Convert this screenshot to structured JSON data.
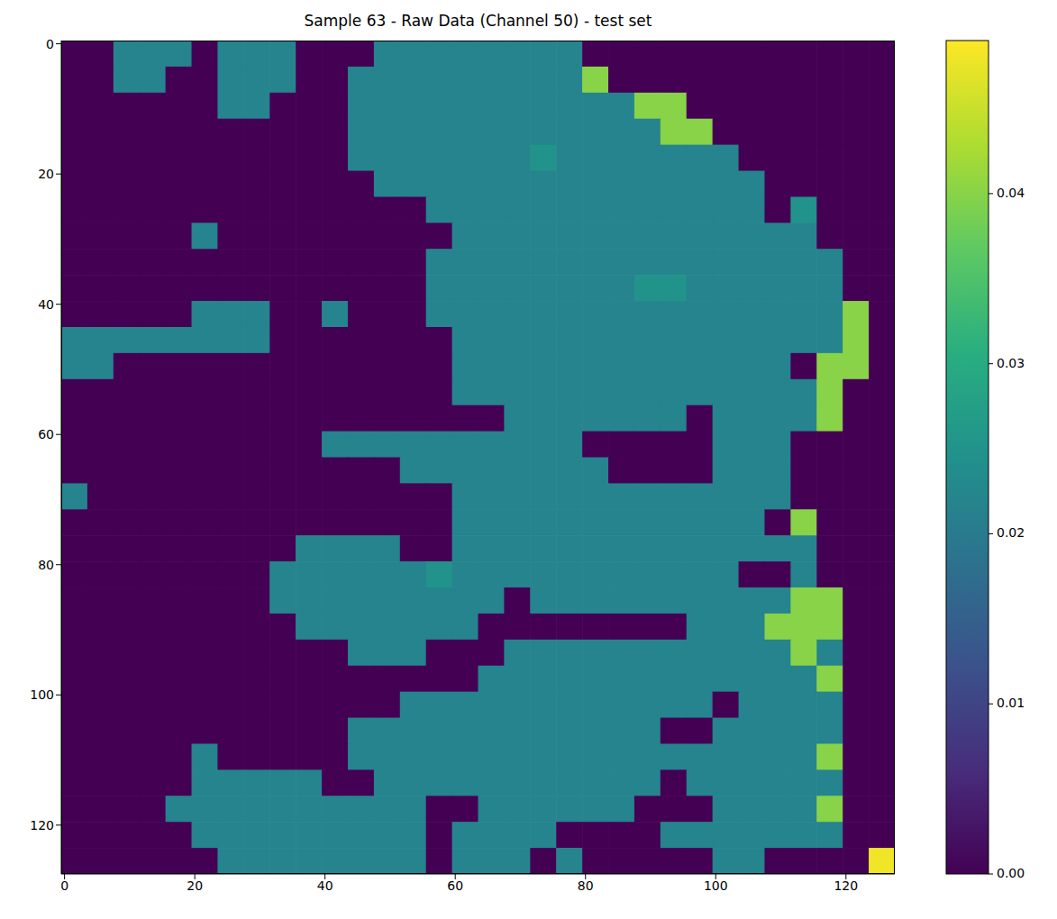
{
  "chart_data": {
    "type": "heatmap",
    "title": "Sample 63 - Raw Data (Channel 50) - test set",
    "color": "viridis",
    "x": [
      1.5,
      5.5,
      9.5,
      13.5,
      17.5,
      21.5,
      25.5,
      29.5,
      33.5,
      37.5,
      41.5,
      45.5,
      49.5,
      53.5,
      57.5,
      61.5,
      65.5,
      69.5,
      73.5,
      77.5,
      81.5,
      85.5,
      89.5,
      93.5,
      97.5,
      101.5,
      105.5,
      109.5,
      113.5,
      117.5,
      121.5,
      125.5
    ],
    "y": [
      1.5,
      5.5,
      9.5,
      13.5,
      17.5,
      21.5,
      25.5,
      29.5,
      33.5,
      37.5,
      41.5,
      45.5,
      49.5,
      53.5,
      57.5,
      61.5,
      65.5,
      69.5,
      73.5,
      77.5,
      81.5,
      85.5,
      89.5,
      93.5,
      97.5,
      101.5,
      105.5,
      109.5,
      113.5,
      117.5,
      121.5,
      125.5
    ],
    "cells": [
      [
        0,
        0,
        0.022,
        0.022,
        0.022,
        0,
        0.022,
        0.022,
        0.022,
        0,
        0,
        0,
        0.022,
        0.022,
        0.022,
        0.022,
        0.022,
        0.022,
        0.022,
        0.022,
        0,
        0,
        0,
        0,
        0,
        0,
        0,
        0,
        0,
        0,
        0,
        0
      ],
      [
        0,
        0,
        0.022,
        0.022,
        0,
        0,
        0.022,
        0.022,
        0.022,
        0,
        0,
        0.022,
        0.022,
        0.022,
        0.022,
        0.022,
        0.022,
        0.022,
        0.022,
        0.022,
        0.04,
        0,
        0,
        0,
        0,
        0,
        0,
        0,
        0,
        0,
        0,
        0
      ],
      [
        0,
        0,
        0,
        0,
        0,
        0,
        0.022,
        0.022,
        0,
        0,
        0,
        0.022,
        0.022,
        0.022,
        0.022,
        0.022,
        0.022,
        0.022,
        0.022,
        0.022,
        0.022,
        0.022,
        0.04,
        0.04,
        0,
        0,
        0,
        0,
        0,
        0,
        0,
        0
      ],
      [
        0,
        0,
        0,
        0,
        0,
        0,
        0,
        0,
        0,
        0,
        0,
        0.022,
        0.022,
        0.022,
        0.022,
        0.022,
        0.022,
        0.022,
        0.022,
        0.022,
        0.022,
        0.022,
        0.022,
        0.04,
        0.04,
        0,
        0,
        0,
        0,
        0,
        0,
        0
      ],
      [
        0,
        0,
        0,
        0,
        0,
        0,
        0,
        0,
        0,
        0,
        0,
        0.022,
        0.022,
        0.022,
        0.022,
        0.022,
        0.022,
        0.022,
        0.025,
        0.022,
        0.022,
        0.022,
        0.022,
        0.022,
        0.022,
        0.022,
        0,
        0,
        0,
        0,
        0,
        0
      ],
      [
        0,
        0,
        0,
        0,
        0,
        0,
        0,
        0,
        0,
        0,
        0,
        0,
        0.022,
        0.022,
        0.022,
        0.022,
        0.022,
        0.022,
        0.022,
        0.022,
        0.022,
        0.022,
        0.022,
        0.022,
        0.022,
        0.022,
        0.022,
        0,
        0,
        0,
        0,
        0
      ],
      [
        0,
        0,
        0,
        0,
        0,
        0,
        0,
        0,
        0,
        0,
        0,
        0,
        0,
        0,
        0.022,
        0.022,
        0.022,
        0.022,
        0.022,
        0.022,
        0.022,
        0.022,
        0.022,
        0.022,
        0.022,
        0.022,
        0.022,
        0,
        0.025,
        0,
        0,
        0
      ],
      [
        0,
        0,
        0,
        0,
        0,
        0.022,
        0,
        0,
        0,
        0,
        0,
        0,
        0,
        0,
        0,
        0.022,
        0.022,
        0.022,
        0.022,
        0.022,
        0.022,
        0.022,
        0.022,
        0.022,
        0.022,
        0.022,
        0.022,
        0.022,
        0.022,
        0,
        0,
        0
      ],
      [
        0,
        0,
        0,
        0,
        0,
        0,
        0,
        0,
        0,
        0,
        0,
        0,
        0,
        0,
        0.022,
        0.022,
        0.022,
        0.022,
        0.022,
        0.022,
        0.022,
        0.022,
        0.022,
        0.022,
        0.022,
        0.022,
        0.022,
        0.022,
        0.022,
        0.022,
        0,
        0
      ],
      [
        0,
        0,
        0,
        0,
        0,
        0,
        0,
        0,
        0,
        0,
        0,
        0,
        0,
        0,
        0.022,
        0.022,
        0.022,
        0.022,
        0.022,
        0.022,
        0.022,
        0.022,
        0.025,
        0.025,
        0.022,
        0.022,
        0.022,
        0.022,
        0.022,
        0.022,
        0,
        0
      ],
      [
        0,
        0,
        0,
        0,
        0,
        0.022,
        0.022,
        0.022,
        0,
        0,
        0.022,
        0,
        0,
        0,
        0.022,
        0.022,
        0.022,
        0.022,
        0.022,
        0.022,
        0.022,
        0.022,
        0.022,
        0.022,
        0.022,
        0.022,
        0.022,
        0.022,
        0.022,
        0.022,
        0.04,
        0
      ],
      [
        0.022,
        0.022,
        0.022,
        0.022,
        0.022,
        0.022,
        0.022,
        0.022,
        0,
        0,
        0,
        0,
        0,
        0,
        0,
        0.022,
        0.022,
        0.022,
        0.022,
        0.022,
        0.022,
        0.022,
        0.022,
        0.022,
        0.022,
        0.022,
        0.022,
        0.022,
        0.022,
        0.022,
        0.04,
        0
      ],
      [
        0.022,
        0.022,
        0,
        0,
        0,
        0,
        0,
        0,
        0,
        0,
        0,
        0,
        0,
        0,
        0,
        0.022,
        0.022,
        0.022,
        0.022,
        0.022,
        0.022,
        0.022,
        0.022,
        0.022,
        0.022,
        0.022,
        0.022,
        0.022,
        0,
        0.04,
        0.04,
        0
      ],
      [
        0,
        0,
        0,
        0,
        0,
        0,
        0,
        0,
        0,
        0,
        0,
        0,
        0,
        0,
        0,
        0.022,
        0.022,
        0.022,
        0.022,
        0.022,
        0.022,
        0.022,
        0.022,
        0.022,
        0.022,
        0.022,
        0.022,
        0.022,
        0.022,
        0.04,
        0,
        0
      ],
      [
        0,
        0,
        0,
        0,
        0,
        0,
        0,
        0,
        0,
        0,
        0,
        0,
        0,
        0,
        0,
        0,
        0,
        0.022,
        0.022,
        0.022,
        0.022,
        0.022,
        0.022,
        0.022,
        0,
        0.022,
        0.022,
        0.022,
        0.022,
        0.04,
        0,
        0
      ],
      [
        0,
        0,
        0,
        0,
        0,
        0,
        0,
        0,
        0,
        0,
        0.022,
        0.022,
        0.022,
        0.022,
        0.022,
        0.022,
        0.022,
        0.022,
        0.022,
        0.022,
        0,
        0,
        0,
        0,
        0,
        0.022,
        0.022,
        0.022,
        0,
        0,
        0,
        0
      ],
      [
        0,
        0,
        0,
        0,
        0,
        0,
        0,
        0,
        0,
        0,
        0,
        0,
        0,
        0.022,
        0.022,
        0.022,
        0.022,
        0.022,
        0.022,
        0.022,
        0.022,
        0,
        0,
        0,
        0,
        0.022,
        0.022,
        0.022,
        0,
        0,
        0,
        0
      ],
      [
        0.022,
        0,
        0,
        0,
        0,
        0,
        0,
        0,
        0,
        0,
        0,
        0,
        0,
        0,
        0,
        0.022,
        0.022,
        0.022,
        0.022,
        0.022,
        0.022,
        0.022,
        0.022,
        0.022,
        0.022,
        0.022,
        0.022,
        0.022,
        0,
        0,
        0,
        0
      ],
      [
        0,
        0,
        0,
        0,
        0,
        0,
        0,
        0,
        0,
        0,
        0,
        0,
        0,
        0,
        0,
        0.022,
        0.022,
        0.022,
        0.022,
        0.022,
        0.022,
        0.022,
        0.022,
        0.022,
        0.022,
        0.022,
        0.022,
        0,
        0.04,
        0,
        0,
        0
      ],
      [
        0,
        0,
        0,
        0,
        0,
        0,
        0,
        0,
        0,
        0.022,
        0.022,
        0.022,
        0.022,
        0,
        0,
        0.022,
        0.022,
        0.022,
        0.022,
        0.022,
        0.022,
        0.022,
        0.022,
        0.022,
        0.022,
        0.022,
        0.022,
        0.022,
        0.022,
        0,
        0,
        0
      ],
      [
        0,
        0,
        0,
        0,
        0,
        0,
        0,
        0,
        0.022,
        0.022,
        0.022,
        0.022,
        0.022,
        0.022,
        0.025,
        0.022,
        0.022,
        0.022,
        0.022,
        0.022,
        0.022,
        0.022,
        0.022,
        0.022,
        0.022,
        0.022,
        0,
        0,
        0.022,
        0,
        0,
        0
      ],
      [
        0,
        0,
        0,
        0,
        0,
        0,
        0,
        0,
        0.022,
        0.022,
        0.022,
        0.022,
        0.022,
        0.022,
        0.022,
        0.022,
        0.022,
        0,
        0.022,
        0.022,
        0.022,
        0.022,
        0.022,
        0.022,
        0.022,
        0.022,
        0.022,
        0.022,
        0.04,
        0.04,
        0,
        0
      ],
      [
        0,
        0,
        0,
        0,
        0,
        0,
        0,
        0,
        0,
        0.022,
        0.022,
        0.022,
        0.022,
        0.022,
        0.022,
        0.022,
        0,
        0,
        0,
        0,
        0,
        0,
        0,
        0,
        0.022,
        0.022,
        0.022,
        0.04,
        0.04,
        0.04,
        0,
        0
      ],
      [
        0,
        0,
        0,
        0,
        0,
        0,
        0,
        0,
        0,
        0,
        0,
        0.022,
        0.022,
        0.022,
        0,
        0,
        0,
        0.022,
        0.022,
        0.022,
        0.022,
        0.022,
        0.022,
        0.022,
        0.022,
        0.022,
        0.022,
        0.022,
        0.04,
        0.022,
        0,
        0
      ],
      [
        0,
        0,
        0,
        0,
        0,
        0,
        0,
        0,
        0,
        0,
        0,
        0,
        0,
        0,
        0,
        0,
        0.022,
        0.022,
        0.022,
        0.022,
        0.022,
        0.022,
        0.022,
        0.022,
        0.022,
        0.022,
        0.022,
        0.022,
        0.022,
        0.04,
        0,
        0
      ],
      [
        0,
        0,
        0,
        0,
        0,
        0,
        0,
        0,
        0,
        0,
        0,
        0,
        0,
        0.022,
        0.022,
        0.022,
        0.022,
        0.022,
        0.022,
        0.022,
        0.022,
        0.022,
        0.022,
        0.022,
        0.022,
        0,
        0.022,
        0.022,
        0.022,
        0.022,
        0,
        0
      ],
      [
        0,
        0,
        0,
        0,
        0,
        0,
        0,
        0,
        0,
        0,
        0,
        0.022,
        0.022,
        0.022,
        0.022,
        0.022,
        0.022,
        0.022,
        0.022,
        0.022,
        0.022,
        0.022,
        0.022,
        0,
        0,
        0.022,
        0.022,
        0.022,
        0.022,
        0.022,
        0,
        0
      ],
      [
        0,
        0,
        0,
        0,
        0,
        0.022,
        0,
        0,
        0,
        0,
        0,
        0.022,
        0.022,
        0.022,
        0.022,
        0.022,
        0.022,
        0.022,
        0.022,
        0.022,
        0.022,
        0.022,
        0.022,
        0.022,
        0.022,
        0.022,
        0.022,
        0.022,
        0.022,
        0.04,
        0,
        0
      ],
      [
        0,
        0,
        0,
        0,
        0,
        0.022,
        0.022,
        0.022,
        0.022,
        0.022,
        0,
        0,
        0.022,
        0.022,
        0.022,
        0.022,
        0.022,
        0.022,
        0.022,
        0.022,
        0.022,
        0.022,
        0.022,
        0,
        0.022,
        0.022,
        0.022,
        0.022,
        0.022,
        0.022,
        0,
        0
      ],
      [
        0,
        0,
        0,
        0,
        0.022,
        0.022,
        0.022,
        0.022,
        0.022,
        0.022,
        0.022,
        0.022,
        0.022,
        0.022,
        0,
        0,
        0.022,
        0.022,
        0.022,
        0.022,
        0.022,
        0.022,
        0,
        0,
        0,
        0.022,
        0.022,
        0.022,
        0.022,
        0.04,
        0,
        0
      ],
      [
        0,
        0,
        0,
        0,
        0,
        0.022,
        0.022,
        0.022,
        0.022,
        0.022,
        0.022,
        0.022,
        0.022,
        0.022,
        0,
        0.022,
        0.022,
        0.022,
        0.022,
        0,
        0,
        0,
        0,
        0.022,
        0.022,
        0.022,
        0.022,
        0.022,
        0.022,
        0.022,
        0,
        0
      ],
      [
        0,
        0,
        0,
        0,
        0,
        0,
        0.022,
        0.022,
        0.022,
        0.022,
        0.022,
        0.022,
        0.022,
        0.022,
        0,
        0.022,
        0.022,
        0.022,
        0,
        0.022,
        0,
        0,
        0,
        0,
        0,
        0.022,
        0.022,
        0,
        0,
        0,
        0,
        0.048
      ]
    ],
    "xlim": [
      -0.5,
      127.5
    ],
    "ylim": [
      127.5,
      -0.5
    ],
    "xticks": [
      0,
      20,
      40,
      60,
      80,
      100,
      120
    ],
    "yticks": [
      0,
      20,
      40,
      60,
      80,
      100,
      120
    ],
    "colorbar": {
      "range": [
        0,
        0.049
      ],
      "ticks": [
        {
          "value": 0,
          "label": "0.00"
        },
        {
          "value": 0.01,
          "label": "0.01"
        },
        {
          "value": 0.02,
          "label": "0.02"
        },
        {
          "value": 0.03,
          "label": "0.03"
        },
        {
          "value": 0.04,
          "label": "0.04"
        }
      ]
    }
  }
}
